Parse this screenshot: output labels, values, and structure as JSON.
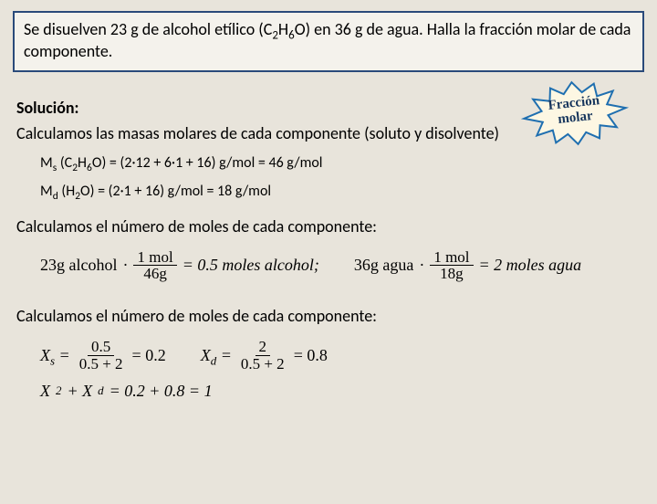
{
  "problem": {
    "text_html": "Se disuelven 23 g de alcohol etílico (C<sub>2</sub>H<sub>6</sub>O) en 36 g de agua. Halla la fracción molar de cada componente."
  },
  "burst": {
    "line1": "Fracción",
    "line2": "molar",
    "fill": "#fdf7e3",
    "stroke": "#1f6fb0"
  },
  "solution_label": "Solución:",
  "line_masses": "Calculamos las masas molares de cada componente (soluto y disolvente)",
  "mass_solute_html": "M<sub>s</sub> (C<sub>2</sub>H<sub>6</sub>O) = (2·12 + 6·1 + 16) g/mol = 46 g/mol",
  "mass_solvent_html": "M<sub>d</sub> (H<sub>2</sub>O) = (2·1 + 16) g/mol = 18 g/mol",
  "line_moles": "Calculamos el número de moles de cada componente:",
  "moles_eq": {
    "alcohol": {
      "mass": "23g alcohol",
      "num": "1 mol",
      "den": "46g",
      "result": "= 0.5 moles alcohol;"
    },
    "agua": {
      "mass": "36g agua",
      "num": "1 mol",
      "den": "18g",
      "result": "= 2 moles agua"
    }
  },
  "line_fractions": "Calculamos el número de moles de cada componente:",
  "fractions": {
    "xs": {
      "label": "X",
      "sub": "s",
      "num": "0.5",
      "den": "0.5 + 2",
      "val": "= 0.2"
    },
    "xd": {
      "label": "X",
      "sub": "d",
      "num": "2",
      "den": "0.5 + 2",
      "val": "= 0.8"
    },
    "sum": "X<sub>2</sub> + X<sub>d</sub> = 0.2 + 0.8 = 1"
  }
}
